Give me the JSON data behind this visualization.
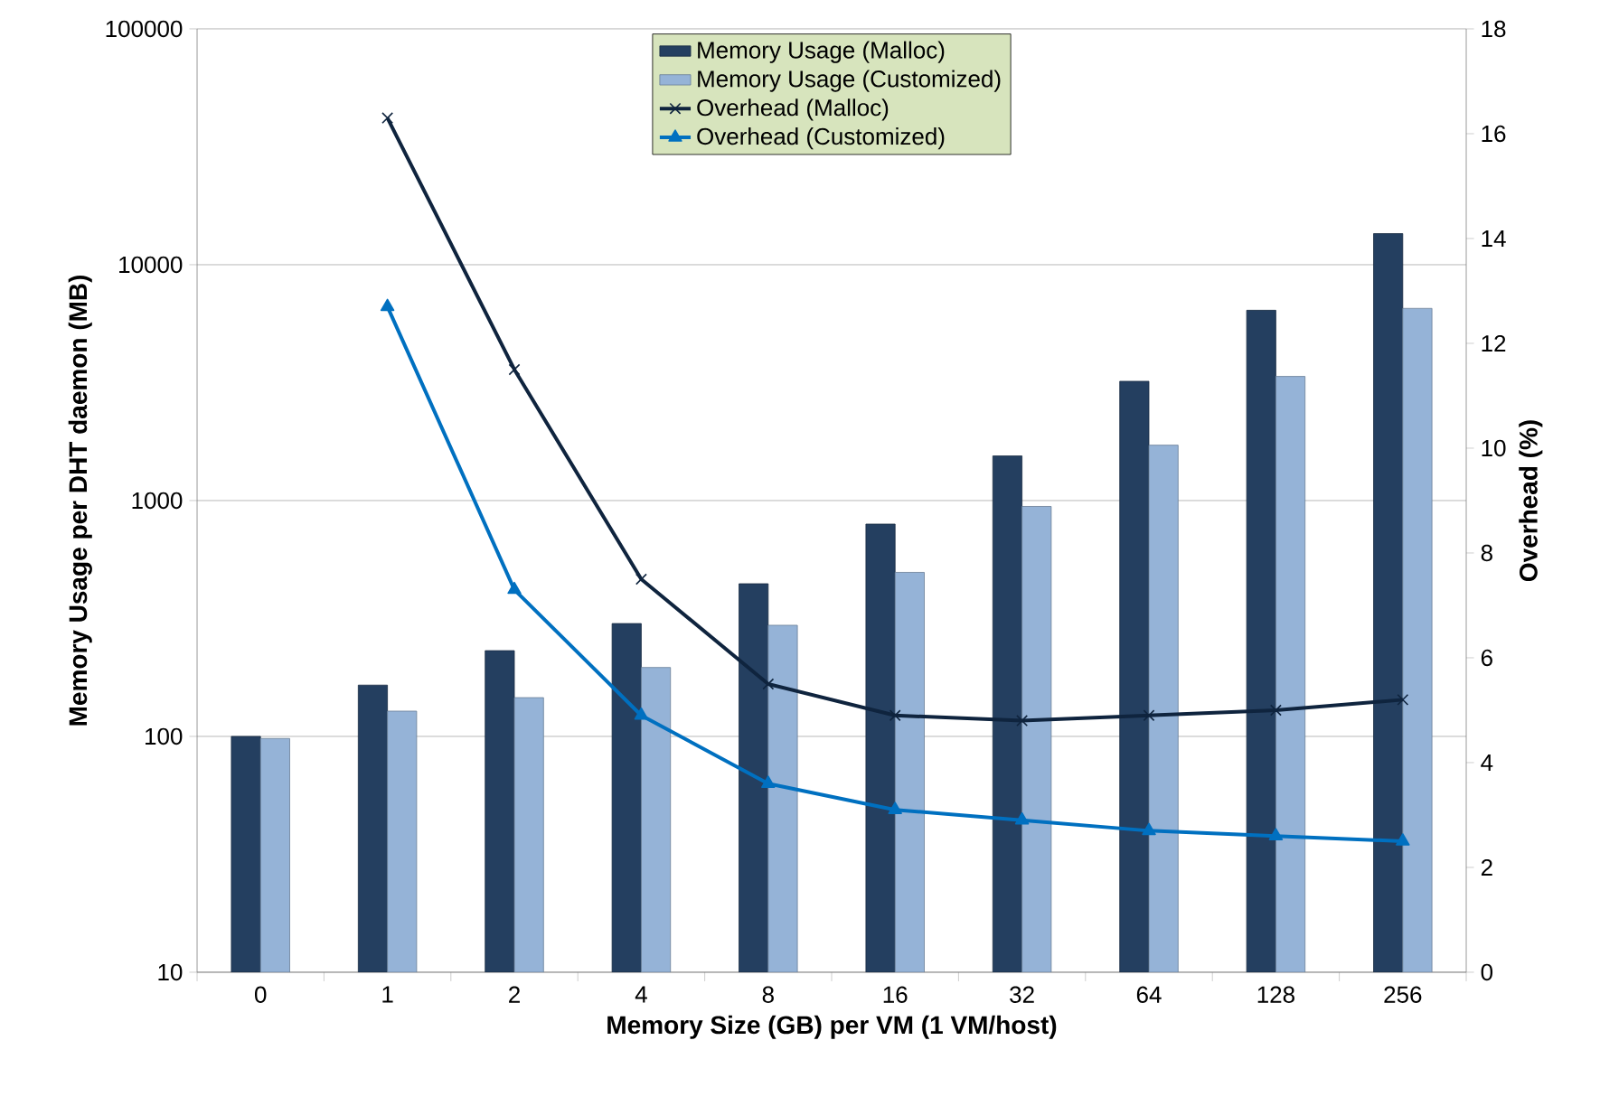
{
  "chart_data": {
    "type": "bar",
    "xlabel": "Memory Size (GB) per VM (1 VM/host)",
    "ylabel": "Memory Usage per DHT daemon (MB)",
    "y2label": "Overhead (%)",
    "categories": [
      "0",
      "1",
      "2",
      "4",
      "8",
      "16",
      "32",
      "64",
      "128",
      "256"
    ],
    "series": [
      {
        "name": "Memory Usage (Malloc)",
        "color": "#243f60",
        "values": [
          100,
          165,
          231,
          301,
          444,
          795,
          1546,
          3204,
          6411,
          13550
        ]
      },
      {
        "name": "Memory Usage (Customized)",
        "color": "#95b3d7",
        "values": [
          98,
          128,
          146,
          196,
          296,
          496,
          944,
          1718,
          3360,
          6530
        ]
      },
      {
        "name": "Overhead (Malloc)",
        "type": "line",
        "axis": "y2",
        "color": "#0f243e",
        "marker": "cross",
        "values": [
          null,
          16.3,
          11.5,
          7.5,
          5.5,
          4.9,
          4.8,
          4.9,
          5.0,
          5.2
        ]
      },
      {
        "name": "Overhead (Customized)",
        "type": "line",
        "axis": "y2",
        "color": "#0070c0",
        "marker": "triangle",
        "values": [
          null,
          12.7,
          7.3,
          4.9,
          3.6,
          3.1,
          2.9,
          2.7,
          2.6,
          2.5
        ]
      }
    ],
    "log": "y",
    "ylim": [
      10,
      100000
    ],
    "yticks": [
      10,
      100,
      1000,
      10000,
      100000
    ],
    "y2lim": [
      0,
      18
    ],
    "y2ticks": [
      0,
      2,
      4,
      6,
      8,
      10,
      12,
      14,
      16,
      18
    ],
    "grid": "y",
    "legend": "top"
  }
}
